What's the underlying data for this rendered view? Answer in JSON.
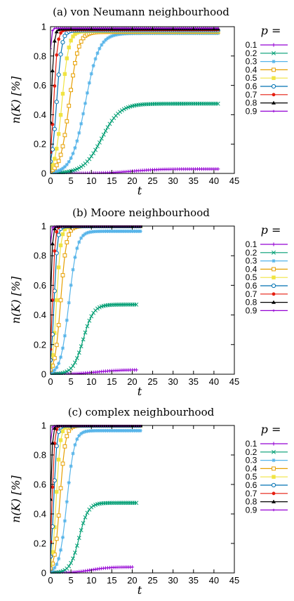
{
  "chart_data": [
    {
      "type": "line",
      "title": "(a) von Neumann neighbourhood",
      "xlabel": "t",
      "ylabel": "n(K) [%]",
      "xlim": [
        0,
        45
      ],
      "ylim": [
        0,
        1
      ],
      "xticks": [
        "0",
        "5",
        "10",
        "15",
        "20",
        "25",
        "30",
        "35",
        "40",
        "45"
      ],
      "yticks": [
        "0",
        "0.2",
        "0.4",
        "0.6",
        "0.8",
        "1"
      ],
      "grid": false,
      "legend_title": "p =",
      "legend_position": "right",
      "series": [
        {
          "name": "0.1",
          "color": "#9400d3",
          "marker": "plus",
          "k": 0.3,
          "t0": 20.0,
          "max": 0.03,
          "x_end": 41
        },
        {
          "name": "0.2",
          "color": "#009e73",
          "marker": "x",
          "k": 0.45,
          "t0": 12.5,
          "max": 0.475,
          "x_end": 41
        },
        {
          "name": "0.3",
          "color": "#56b4e9",
          "marker": "star",
          "k": 0.6,
          "t0": 8.5,
          "max": 0.955,
          "x_end": 41
        },
        {
          "name": "0.4",
          "color": "#e69f00",
          "marker": "square",
          "k": 0.9,
          "t0": 4.6,
          "max": 0.965,
          "x_end": 41
        },
        {
          "name": "0.5",
          "color": "#f0e442",
          "marker": "filled-square",
          "k": 1.2,
          "t0": 2.8,
          "max": 0.97,
          "x_end": 41
        },
        {
          "name": "0.6",
          "color": "#0072b2",
          "marker": "circle",
          "k": 1.6,
          "t0": 1.5,
          "max": 0.975,
          "x_end": 41
        },
        {
          "name": "0.7",
          "color": "#e51e10",
          "marker": "filled-circle",
          "k": 2.2,
          "t0": 0.8,
          "max": 0.98,
          "x_end": 41
        },
        {
          "name": "0.8",
          "color": "#000000",
          "marker": "triangle",
          "k": 3.0,
          "t0": 0.2,
          "max": 0.985,
          "x_end": 41
        },
        {
          "name": "0.9",
          "color": "#9400d3",
          "marker": "small-plus",
          "k": 4.5,
          "t0": -0.4,
          "max": 0.99,
          "x_end": 41
        }
      ]
    },
    {
      "type": "line",
      "title": "(b) Moore neighbourhood",
      "xlabel": "t",
      "ylabel": "n(K) [%]",
      "xlim": [
        0,
        45
      ],
      "ylim": [
        0,
        1
      ],
      "xticks": [
        "0",
        "5",
        "10",
        "15",
        "20",
        "25",
        "30",
        "35",
        "40",
        "45"
      ],
      "yticks": [
        "0",
        "0.2",
        "0.4",
        "0.6",
        "0.8",
        "1"
      ],
      "grid": false,
      "legend_title": "p =",
      "legend_position": "right",
      "series": [
        {
          "name": "0.1",
          "color": "#9400d3",
          "marker": "plus",
          "k": 0.35,
          "t0": 11.5,
          "max": 0.03,
          "x_end": 21
        },
        {
          "name": "0.2",
          "color": "#009e73",
          "marker": "x",
          "k": 0.8,
          "t0": 8.0,
          "max": 0.47,
          "x_end": 21
        },
        {
          "name": "0.3",
          "color": "#56b4e9",
          "marker": "star",
          "k": 1.0,
          "t0": 4.5,
          "max": 0.965,
          "x_end": 22
        },
        {
          "name": "0.4",
          "color": "#e69f00",
          "marker": "square",
          "k": 1.4,
          "t0": 2.5,
          "max": 1.0,
          "x_end": 22
        },
        {
          "name": "0.5",
          "color": "#f0e442",
          "marker": "filled-square",
          "k": 1.9,
          "t0": 1.5,
          "max": 1.0,
          "x_end": 22
        },
        {
          "name": "0.6",
          "color": "#0072b2",
          "marker": "circle",
          "k": 2.5,
          "t0": 0.9,
          "max": 1.0,
          "x_end": 22
        },
        {
          "name": "0.7",
          "color": "#e51e10",
          "marker": "filled-circle",
          "k": 3.2,
          "t0": 0.5,
          "max": 1.0,
          "x_end": 22
        },
        {
          "name": "0.8",
          "color": "#000000",
          "marker": "triangle",
          "k": 4.0,
          "t0": 0.0,
          "max": 1.0,
          "x_end": 22
        },
        {
          "name": "0.9",
          "color": "#9400d3",
          "marker": "small-plus",
          "k": 5.0,
          "t0": -0.4,
          "max": 1.0,
          "x_end": 22
        }
      ]
    },
    {
      "type": "line",
      "title": "(c) complex neighbourhood",
      "xlabel": "t",
      "ylabel": "n(K) [%]",
      "xlim": [
        0,
        45
      ],
      "ylim": [
        0,
        1
      ],
      "xticks": [
        "0",
        "5",
        "10",
        "15",
        "20",
        "25",
        "30",
        "35",
        "40",
        "45"
      ],
      "yticks": [
        "0",
        "0.2",
        "0.4",
        "0.6",
        "0.8",
        "1"
      ],
      "grid": false,
      "legend_title": "p =",
      "legend_position": "right",
      "series": [
        {
          "name": "0.1",
          "color": "#9400d3",
          "marker": "plus",
          "k": 0.45,
          "t0": 10.0,
          "max": 0.04,
          "x_end": 20
        },
        {
          "name": "0.2",
          "color": "#009e73",
          "marker": "x",
          "k": 0.9,
          "t0": 7.0,
          "max": 0.475,
          "x_end": 21
        },
        {
          "name": "0.3",
          "color": "#56b4e9",
          "marker": "star",
          "k": 1.1,
          "t0": 4.0,
          "max": 0.965,
          "x_end": 22
        },
        {
          "name": "0.4",
          "color": "#e69f00",
          "marker": "square",
          "k": 1.5,
          "t0": 2.3,
          "max": 1.0,
          "x_end": 22
        },
        {
          "name": "0.5",
          "color": "#f0e442",
          "marker": "filled-square",
          "k": 2.0,
          "t0": 1.4,
          "max": 1.0,
          "x_end": 22
        },
        {
          "name": "0.6",
          "color": "#0072b2",
          "marker": "circle",
          "k": 2.6,
          "t0": 0.8,
          "max": 1.0,
          "x_end": 22
        },
        {
          "name": "0.7",
          "color": "#e51e10",
          "marker": "filled-circle",
          "k": 3.3,
          "t0": 0.4,
          "max": 1.0,
          "x_end": 22
        },
        {
          "name": "0.8",
          "color": "#000000",
          "marker": "triangle",
          "k": 4.0,
          "t0": 0.0,
          "max": 1.0,
          "x_end": 22
        },
        {
          "name": "0.9",
          "color": "#9400d3",
          "marker": "small-plus",
          "k": 5.0,
          "t0": -0.4,
          "max": 1.0,
          "x_end": 22
        }
      ]
    }
  ]
}
